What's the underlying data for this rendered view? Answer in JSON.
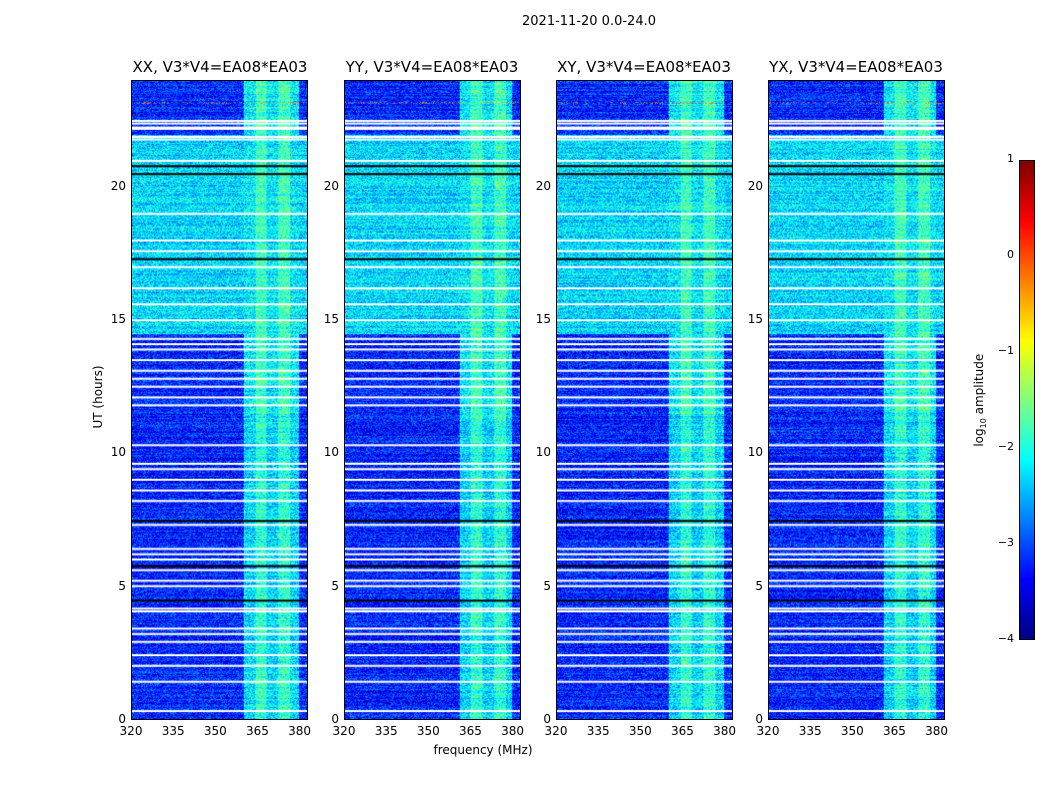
{
  "chart_data": {
    "type": "heatmap",
    "title": "2021-11-20 0.0-24.0",
    "xlabel": "frequency (MHz)",
    "ylabel": "UT (hours)",
    "xlim": [
      320,
      383
    ],
    "ylim": [
      0,
      24
    ],
    "xticks": [
      "320",
      "335",
      "350",
      "365",
      "380"
    ],
    "yticks": [
      "0",
      "5",
      "10",
      "15",
      "20"
    ],
    "panels": [
      {
        "title": "XX, V3*V4=EA08*EA03",
        "band_mhz": [
          360,
          380
        ]
      },
      {
        "title": "YY, V3*V4=EA08*EA03",
        "band_mhz": [
          361,
          380
        ]
      },
      {
        "title": "XY, V3*V4=EA08*EA03",
        "band_mhz": [
          360,
          380
        ]
      },
      {
        "title": "YX, V3*V4=EA08*EA03",
        "band_mhz": [
          361,
          380
        ]
      }
    ],
    "background_log_amp": -3.2,
    "band_log_amp": -1.9,
    "active_hours": [
      14.5,
      22.0
    ],
    "active_log_amp": -2.0,
    "flagged_hours": [
      0.3,
      1.4,
      2.0,
      2.4,
      2.9,
      3.2,
      3.4,
      4.05,
      4.15,
      5.0,
      5.2,
      5.6,
      6.0,
      6.2,
      6.4,
      7.3,
      8.2,
      8.6,
      9.0,
      9.4,
      9.6,
      10.3,
      11.8,
      12.1,
      12.5,
      12.8,
      13.1,
      13.5,
      13.9,
      14.1,
      14.3,
      15.0,
      15.6,
      16.2,
      17.0,
      17.6,
      18.0,
      19.0,
      21.0,
      21.8,
      21.9,
      22.2,
      22.25,
      22.4,
      22.5
    ],
    "dark_hours": [
      4.45,
      5.75,
      7.45,
      17.3,
      20.5,
      20.8
    ],
    "colorbar": {
      "label": "log10 amplitude",
      "ticks": [
        "1",
        "0",
        "−1",
        "−2",
        "−3",
        "−4"
      ],
      "range": [
        -4,
        1
      ],
      "colormap": "jet"
    }
  }
}
